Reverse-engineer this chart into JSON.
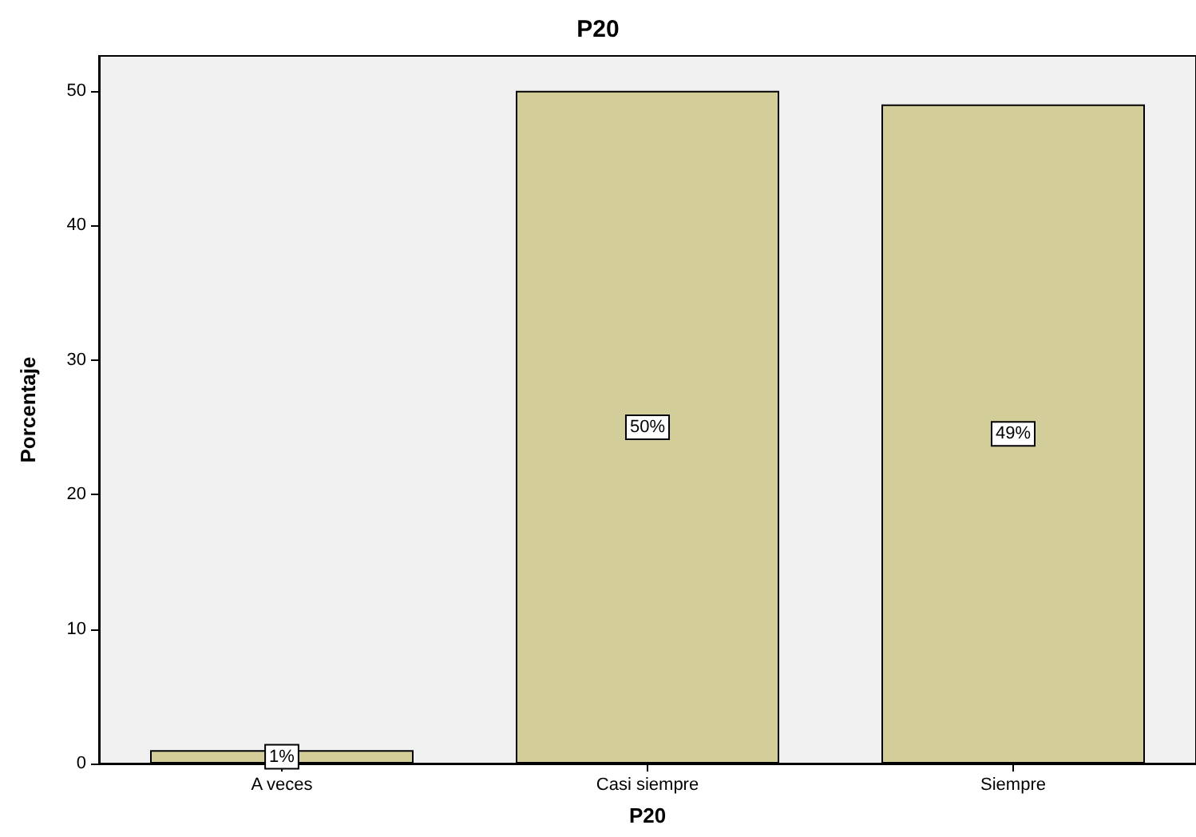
{
  "chart_data": {
    "type": "bar",
    "title": "P20",
    "xlabel": "P20",
    "ylabel": "Porcentaje",
    "categories": [
      "A veces",
      "Casi siempre",
      "Siempre"
    ],
    "values": [
      1,
      50,
      49
    ],
    "value_labels": [
      "1%",
      "50%",
      "49%"
    ],
    "color": "#d3ce99",
    "ylim": [
      0,
      52.6
    ],
    "yticks": [
      0,
      10,
      20,
      30,
      40,
      50
    ],
    "grid": false
  }
}
